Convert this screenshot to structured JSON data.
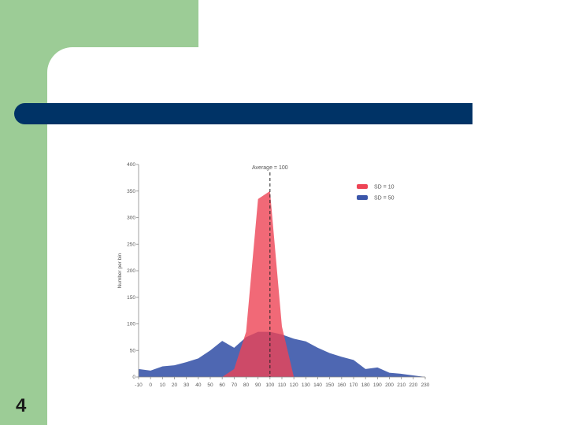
{
  "slide": {
    "number": "4"
  },
  "colors": {
    "sidebar": "#9ccc96",
    "title_bar": "#003366",
    "background": "#ffffff"
  },
  "chart_data": {
    "type": "area",
    "ylabel": "Number per bin",
    "xlabel": "",
    "annotation": "Average = 100",
    "average": 100,
    "xlim": [
      -10,
      230
    ],
    "ylim": [
      0,
      400
    ],
    "x_ticks": [
      "-10",
      "0",
      "10",
      "20",
      "30",
      "40",
      "50",
      "60",
      "70",
      "80",
      "90",
      "100",
      "110",
      "120",
      "130",
      "140",
      "150",
      "160",
      "170",
      "180",
      "190",
      "200",
      "210",
      "220",
      "230"
    ],
    "y_ticks": [
      "0",
      "50",
      "100",
      "150",
      "200",
      "250",
      "300",
      "350",
      "400"
    ],
    "legend_position": "top-right",
    "series": [
      {
        "name": "SD = 10",
        "color": "#ee4455",
        "x": [
          60,
          70,
          80,
          90,
          100,
          110,
          120
        ],
        "y": [
          0,
          15,
          85,
          335,
          350,
          95,
          0
        ]
      },
      {
        "name": "SD = 50",
        "color": "#3b56aa",
        "x": [
          -10,
          0,
          10,
          20,
          30,
          40,
          50,
          60,
          70,
          80,
          90,
          100,
          110,
          120,
          130,
          140,
          150,
          160,
          170,
          180,
          190,
          200,
          210,
          220,
          230
        ],
        "y": [
          15,
          12,
          20,
          22,
          28,
          35,
          50,
          68,
          55,
          75,
          85,
          85,
          80,
          72,
          67,
          55,
          45,
          38,
          32,
          15,
          18,
          8,
          6,
          3,
          0
        ]
      }
    ]
  }
}
